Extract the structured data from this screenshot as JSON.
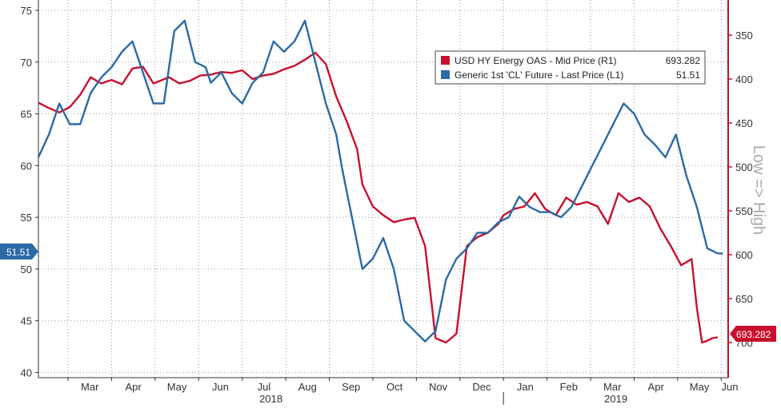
{
  "chart_data": {
    "type": "line",
    "x_months": [
      "Mar",
      "Apr",
      "May",
      "Jun",
      "Jul",
      "Aug",
      "Sep",
      "Oct",
      "Nov",
      "Dec",
      "Jan",
      "Feb",
      "Mar",
      "Apr",
      "May",
      "Jun"
    ],
    "years": [
      "2018",
      "2019"
    ],
    "left_axis": {
      "ylim": [
        39.5,
        76
      ],
      "ticks": [
        40,
        45,
        50,
        55,
        60,
        65,
        70,
        75
      ]
    },
    "right_axis": {
      "ylim": [
        740,
        310
      ],
      "inverted": true,
      "ticks": [
        350,
        400,
        450,
        500,
        550,
        600,
        650,
        700
      ],
      "side_label": "Low => High"
    },
    "x_range": [
      2018.11,
      2019.43
    ],
    "series": [
      {
        "name": "USD HY Energy OAS - Mid Price (R1)",
        "last": "693.282",
        "axis": "right",
        "color": "#c8102e",
        "x": [
          2018.11,
          2018.13,
          2018.15,
          2018.17,
          2018.19,
          2018.21,
          2018.23,
          2018.25,
          2018.27,
          2018.29,
          2018.31,
          2018.33,
          2018.36,
          2018.38,
          2018.4,
          2018.42,
          2018.44,
          2018.46,
          2018.48,
          2018.5,
          2018.52,
          2018.54,
          2018.56,
          2018.58,
          2018.6,
          2018.62,
          2018.64,
          2018.66,
          2018.68,
          2018.7,
          2018.72,
          2018.73,
          2018.75,
          2018.77,
          2018.79,
          2018.81,
          2018.83,
          2018.85,
          2018.87,
          2018.89,
          2018.91,
          2018.93,
          2018.95,
          2018.97,
          2018.99,
          2019.0,
          2019.02,
          2019.04,
          2019.06,
          2019.08,
          2019.1,
          2019.12,
          2019.14,
          2019.16,
          2019.18,
          2019.2,
          2019.22,
          2019.24,
          2019.26,
          2019.28,
          2019.3,
          2019.32,
          2019.34,
          2019.36,
          2019.37,
          2019.38,
          2019.39,
          2019.4,
          2019.41
        ],
        "values": [
          427,
          433,
          438,
          432,
          418,
          398,
          405,
          401,
          406,
          388,
          386,
          405,
          398,
          405,
          402,
          396,
          395,
          392,
          393,
          390,
          400,
          396,
          394,
          389,
          385,
          378,
          370,
          383,
          420,
          448,
          480,
          520,
          545,
          555,
          563,
          560,
          558,
          590,
          695,
          700,
          690,
          590,
          580,
          575,
          565,
          555,
          548,
          545,
          530,
          548,
          555,
          535,
          543,
          540,
          545,
          565,
          530,
          540,
          535,
          545,
          570,
          590,
          612,
          605,
          660,
          700,
          698,
          695,
          694
        ]
      },
      {
        "name": "Generic 1st 'CL' Future - Last Price (L1)",
        "last": "51.51",
        "axis": "left",
        "color": "#2a6aa6",
        "x": [
          2018.11,
          2018.13,
          2018.15,
          2018.17,
          2018.19,
          2018.21,
          2018.23,
          2018.25,
          2018.27,
          2018.29,
          2018.31,
          2018.33,
          2018.35,
          2018.37,
          2018.39,
          2018.41,
          2018.43,
          2018.44,
          2018.46,
          2018.48,
          2018.5,
          2018.52,
          2018.54,
          2018.56,
          2018.58,
          2018.6,
          2018.62,
          2018.64,
          2018.66,
          2018.68,
          2018.69,
          2018.71,
          2018.73,
          2018.75,
          2018.77,
          2018.79,
          2018.81,
          2018.83,
          2018.85,
          2018.87,
          2018.89,
          2018.91,
          2018.93,
          2018.95,
          2018.97,
          2018.99,
          2019.01,
          2019.03,
          2019.05,
          2019.07,
          2019.09,
          2019.11,
          2019.13,
          2019.15,
          2019.17,
          2019.19,
          2019.21,
          2019.23,
          2019.25,
          2019.27,
          2019.29,
          2019.31,
          2019.33,
          2019.35,
          2019.37,
          2019.39,
          2019.41,
          2019.42
        ],
        "values": [
          60.8,
          63,
          66,
          64,
          64,
          67,
          68.5,
          69.5,
          71,
          72,
          69,
          66,
          66,
          73,
          74,
          70,
          69.5,
          68,
          69,
          67,
          66,
          68,
          69,
          72,
          71,
          72,
          74,
          70,
          66,
          63,
          60,
          55,
          50,
          51,
          53,
          50,
          45,
          44,
          43,
          44,
          49,
          51,
          52,
          53.5,
          53.5,
          54.5,
          55,
          57,
          56,
          55.5,
          55.5,
          55,
          56,
          58,
          60,
          62,
          64,
          66,
          65,
          63,
          62,
          60.8,
          63,
          59,
          56,
          52,
          51.51,
          51.51
        ]
      }
    ]
  }
}
